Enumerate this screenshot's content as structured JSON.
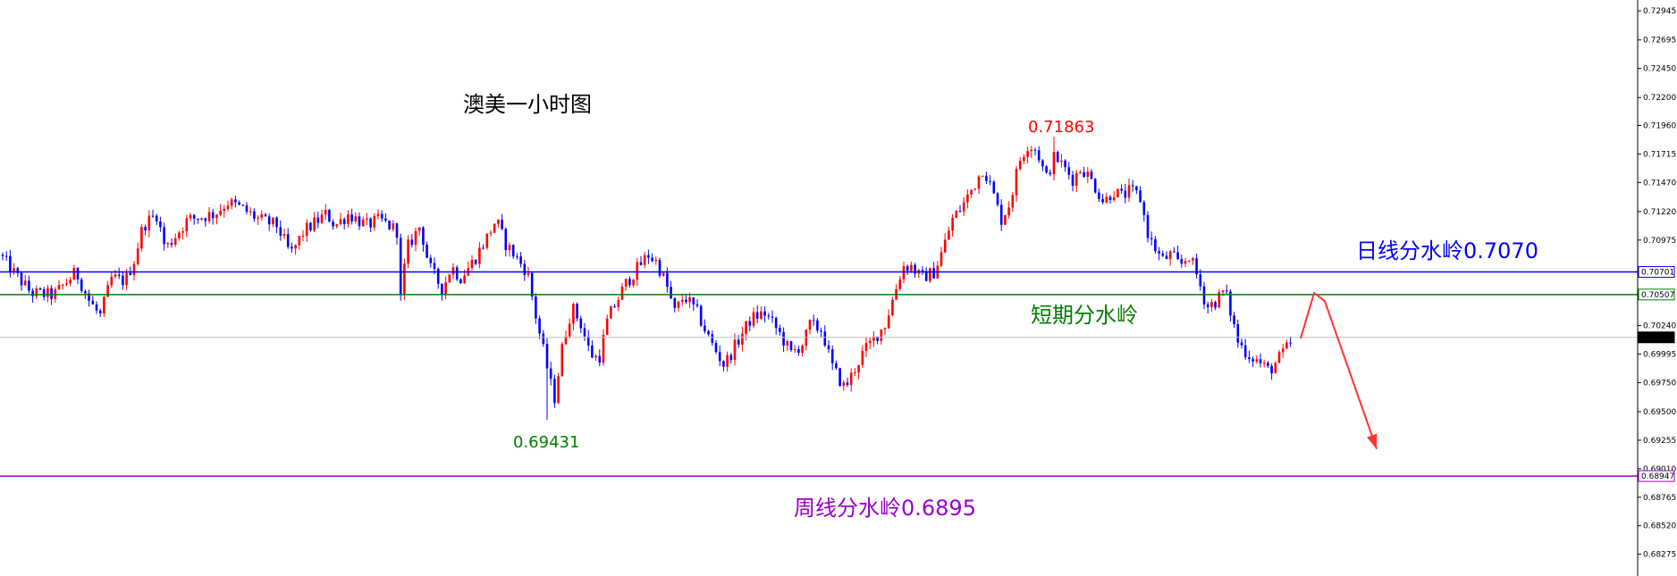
{
  "title": "澳美一小时图",
  "colors": {
    "bull": "#ff0000",
    "bear": "#0000ff",
    "daily_line": "#0000ff",
    "short_line": "#008000",
    "weekly_line": "#9900cc",
    "current_line": "#c0c0c0",
    "high_label": "#ff0000",
    "low_label": "#008000",
    "arrow": "#ff3333"
  },
  "annotations": {
    "high": "0.71863",
    "low": "0.69431",
    "daily_label": "日线分水岭0.7070",
    "short_label": "短期分水岭",
    "weekly_label": "周线分水岭0.6895"
  },
  "price_axis": {
    "ticks": [
      "0.72945",
      "0.72695",
      "0.72450",
      "0.72200",
      "0.71960",
      "0.71715",
      "0.71470",
      "0.71220",
      "0.70975",
      "0.70240",
      "0.69995",
      "0.69750",
      "0.69500",
      "0.69255",
      "0.69010",
      "0.68765",
      "0.68520",
      "0.68275"
    ],
    "markers": {
      "daily": "0.70701",
      "short": "0.70507",
      "current": "0.70139",
      "weekly": "0.68947"
    }
  },
  "chart_data": {
    "type": "candlestick",
    "title": "澳美一小时图",
    "ylim": [
      0.6818,
      0.73
    ],
    "levels": {
      "daily": 0.70701,
      "short": 0.70507,
      "current": 0.70139,
      "weekly": 0.68947
    },
    "high": 0.71863,
    "low": 0.69431,
    "waypoints": [
      [
        0,
        0.7085
      ],
      [
        15,
        0.707
      ],
      [
        35,
        0.7052
      ],
      [
        60,
        0.705
      ],
      [
        85,
        0.707
      ],
      [
        100,
        0.7045
      ],
      [
        112,
        0.7032
      ],
      [
        125,
        0.7065
      ],
      [
        140,
        0.7062
      ],
      [
        150,
        0.708
      ],
      [
        160,
        0.711
      ],
      [
        175,
        0.712
      ],
      [
        185,
        0.709
      ],
      [
        195,
        0.71
      ],
      [
        210,
        0.7115
      ],
      [
        240,
        0.712
      ],
      [
        255,
        0.713
      ],
      [
        270,
        0.7125
      ],
      [
        290,
        0.7115
      ],
      [
        310,
        0.711
      ],
      [
        325,
        0.7085
      ],
      [
        340,
        0.7105
      ],
      [
        365,
        0.712
      ],
      [
        375,
        0.711
      ],
      [
        390,
        0.712
      ],
      [
        410,
        0.711
      ],
      [
        425,
        0.7115
      ],
      [
        445,
        0.7105
      ],
      [
        447,
        0.704
      ],
      [
        455,
        0.709
      ],
      [
        470,
        0.711
      ],
      [
        480,
        0.7075
      ],
      [
        495,
        0.7055
      ],
      [
        505,
        0.7075
      ],
      [
        515,
        0.7065
      ],
      [
        530,
        0.708
      ],
      [
        545,
        0.71
      ],
      [
        555,
        0.7115
      ],
      [
        565,
        0.7095
      ],
      [
        580,
        0.708
      ],
      [
        590,
        0.707
      ],
      [
        600,
        0.703
      ],
      [
        610,
        0.6995
      ],
      [
        620,
        0.696
      ],
      [
        630,
        0.701
      ],
      [
        640,
        0.704
      ],
      [
        650,
        0.7025
      ],
      [
        660,
        0.7
      ],
      [
        670,
        0.6995
      ],
      [
        680,
        0.703
      ],
      [
        690,
        0.7045
      ],
      [
        700,
        0.706
      ],
      [
        710,
        0.707
      ],
      [
        725,
        0.7085
      ],
      [
        735,
        0.7078
      ],
      [
        745,
        0.706
      ],
      [
        755,
        0.7035
      ],
      [
        765,
        0.705
      ],
      [
        780,
        0.7035
      ],
      [
        795,
        0.701
      ],
      [
        810,
        0.699
      ],
      [
        825,
        0.701
      ],
      [
        840,
        0.703
      ],
      [
        855,
        0.7035
      ],
      [
        870,
        0.702
      ],
      [
        885,
        0.7
      ],
      [
        900,
        0.701
      ],
      [
        905,
        0.7025
      ],
      [
        920,
        0.702
      ],
      [
        930,
        0.699
      ],
      [
        945,
        0.697
      ],
      [
        955,
        0.6985
      ],
      [
        965,
        0.7
      ],
      [
        975,
        0.701
      ],
      [
        990,
        0.7025
      ],
      [
        1000,
        0.705
      ],
      [
        1010,
        0.7075
      ],
      [
        1020,
        0.7075
      ],
      [
        1030,
        0.7065
      ],
      [
        1045,
        0.707
      ],
      [
        1055,
        0.709
      ],
      [
        1065,
        0.7115
      ],
      [
        1075,
        0.7125
      ],
      [
        1090,
        0.7145
      ],
      [
        1100,
        0.716
      ],
      [
        1110,
        0.714
      ],
      [
        1120,
        0.7115
      ],
      [
        1130,
        0.713
      ],
      [
        1140,
        0.7165
      ],
      [
        1150,
        0.718
      ],
      [
        1160,
        0.7175
      ],
      [
        1170,
        0.715
      ],
      [
        1180,
        0.717
      ],
      [
        1190,
        0.716
      ],
      [
        1200,
        0.715
      ],
      [
        1210,
        0.716
      ],
      [
        1220,
        0.715
      ],
      [
        1235,
        0.713
      ],
      [
        1245,
        0.714
      ],
      [
        1255,
        0.7135
      ],
      [
        1265,
        0.714
      ],
      [
        1275,
        0.7135
      ],
      [
        1285,
        0.71
      ],
      [
        1300,
        0.708
      ],
      [
        1310,
        0.7085
      ],
      [
        1320,
        0.7075
      ],
      [
        1330,
        0.7085
      ],
      [
        1340,
        0.7065
      ],
      [
        1350,
        0.704
      ],
      [
        1360,
        0.7045
      ],
      [
        1370,
        0.7055
      ],
      [
        1375,
        0.704
      ],
      [
        1385,
        0.701
      ],
      [
        1395,
        0.7
      ],
      [
        1405,
        0.6995
      ],
      [
        1412,
        0.699
      ],
      [
        1420,
        0.6985
      ],
      [
        1435,
        0.7
      ],
      [
        1447,
        0.7012
      ]
    ],
    "projection": {
      "path": [
        [
          1455,
          0.7013
        ],
        [
          1470,
          0.7052
        ],
        [
          1482,
          0.7045
        ],
        [
          1540,
          0.6918
        ]
      ]
    }
  }
}
